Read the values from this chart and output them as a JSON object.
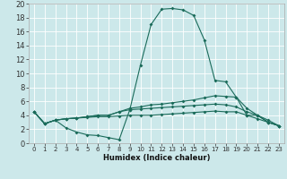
{
  "title": "",
  "xlabel": "Humidex (Indice chaleur)",
  "ylabel": "",
  "bg_color": "#cce8ea",
  "line_color": "#1a6b5a",
  "grid_color": "#ffffff",
  "xlim": [
    -0.5,
    23.5
  ],
  "ylim": [
    0,
    20
  ],
  "xticks": [
    0,
    1,
    2,
    3,
    4,
    5,
    6,
    7,
    8,
    9,
    10,
    11,
    12,
    13,
    14,
    15,
    16,
    17,
    18,
    19,
    20,
    21,
    22,
    23
  ],
  "yticks": [
    0,
    2,
    4,
    6,
    8,
    10,
    12,
    14,
    16,
    18,
    20
  ],
  "line1_x": [
    0,
    1,
    2,
    3,
    4,
    5,
    6,
    7,
    8,
    9,
    10,
    11,
    12,
    13,
    14,
    15,
    16,
    17,
    18,
    19,
    20,
    21,
    22,
    23
  ],
  "line1_y": [
    4.5,
    2.8,
    3.3,
    2.2,
    1.6,
    1.2,
    1.1,
    0.8,
    0.5,
    4.8,
    11.2,
    17.0,
    19.2,
    19.3,
    19.1,
    18.3,
    14.8,
    9.0,
    8.8,
    6.6,
    4.0,
    4.0,
    3.3,
    2.5
  ],
  "line2_x": [
    0,
    1,
    2,
    3,
    4,
    5,
    6,
    7,
    8,
    9,
    10,
    11,
    12,
    13,
    14,
    15,
    16,
    17,
    18,
    19,
    20,
    21,
    22,
    23
  ],
  "line2_y": [
    4.5,
    2.8,
    3.3,
    3.5,
    3.6,
    3.8,
    4.0,
    4.0,
    4.5,
    5.0,
    5.2,
    5.5,
    5.6,
    5.8,
    6.0,
    6.2,
    6.5,
    6.8,
    6.7,
    6.6,
    5.0,
    4.0,
    3.0,
    2.5
  ],
  "line3_x": [
    0,
    1,
    2,
    3,
    4,
    5,
    6,
    7,
    8,
    9,
    10,
    11,
    12,
    13,
    14,
    15,
    16,
    17,
    18,
    19,
    20,
    21,
    22,
    23
  ],
  "line3_y": [
    4.5,
    2.8,
    3.3,
    3.5,
    3.6,
    3.8,
    4.0,
    4.0,
    4.5,
    4.8,
    4.9,
    5.0,
    5.1,
    5.2,
    5.3,
    5.4,
    5.5,
    5.6,
    5.5,
    5.2,
    4.5,
    4.0,
    3.0,
    2.5
  ],
  "line4_x": [
    0,
    1,
    2,
    3,
    4,
    5,
    6,
    7,
    8,
    9,
    10,
    11,
    12,
    13,
    14,
    15,
    16,
    17,
    18,
    19,
    20,
    21,
    22,
    23
  ],
  "line4_y": [
    4.5,
    2.8,
    3.3,
    3.5,
    3.6,
    3.7,
    3.8,
    3.8,
    3.9,
    4.0,
    4.0,
    4.0,
    4.1,
    4.2,
    4.3,
    4.4,
    4.5,
    4.6,
    4.5,
    4.5,
    4.0,
    3.5,
    3.0,
    2.5
  ],
  "xlabel_fontsize": 6,
  "tick_fontsize": 5,
  "marker_size": 2,
  "line_width": 0.8
}
